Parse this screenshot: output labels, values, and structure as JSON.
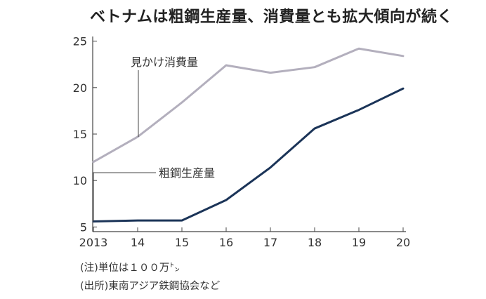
{
  "title": "ベトナムは粗鋼生産量、消費量とも拡大傾向が続く",
  "notes": {
    "unit": "(注)単位は１００万㌧",
    "source": "(出所)東南アジア鉄鋼協会など"
  },
  "colors": {
    "apparent_consumption": "#b3afbd",
    "crude_steel_production": "#1b3458",
    "axis": "#444444"
  },
  "chart_data": {
    "type": "line",
    "categories": [
      "2013",
      "14",
      "15",
      "16",
      "17",
      "18",
      "19",
      "20"
    ],
    "yticks": [
      5,
      10,
      15,
      20,
      25
    ],
    "ylim": [
      4.5,
      25.5
    ],
    "series": [
      {
        "name": "見かけ消費量",
        "values": [
          12.0,
          14.7,
          18.4,
          22.4,
          21.6,
          22.2,
          24.2,
          23.4
        ]
      },
      {
        "name": "粗鋼生産量",
        "values": [
          5.6,
          5.7,
          5.7,
          7.9,
          11.4,
          15.6,
          17.6,
          19.9
        ]
      }
    ],
    "legend_placement": "labels with leader lines",
    "grid": false
  }
}
